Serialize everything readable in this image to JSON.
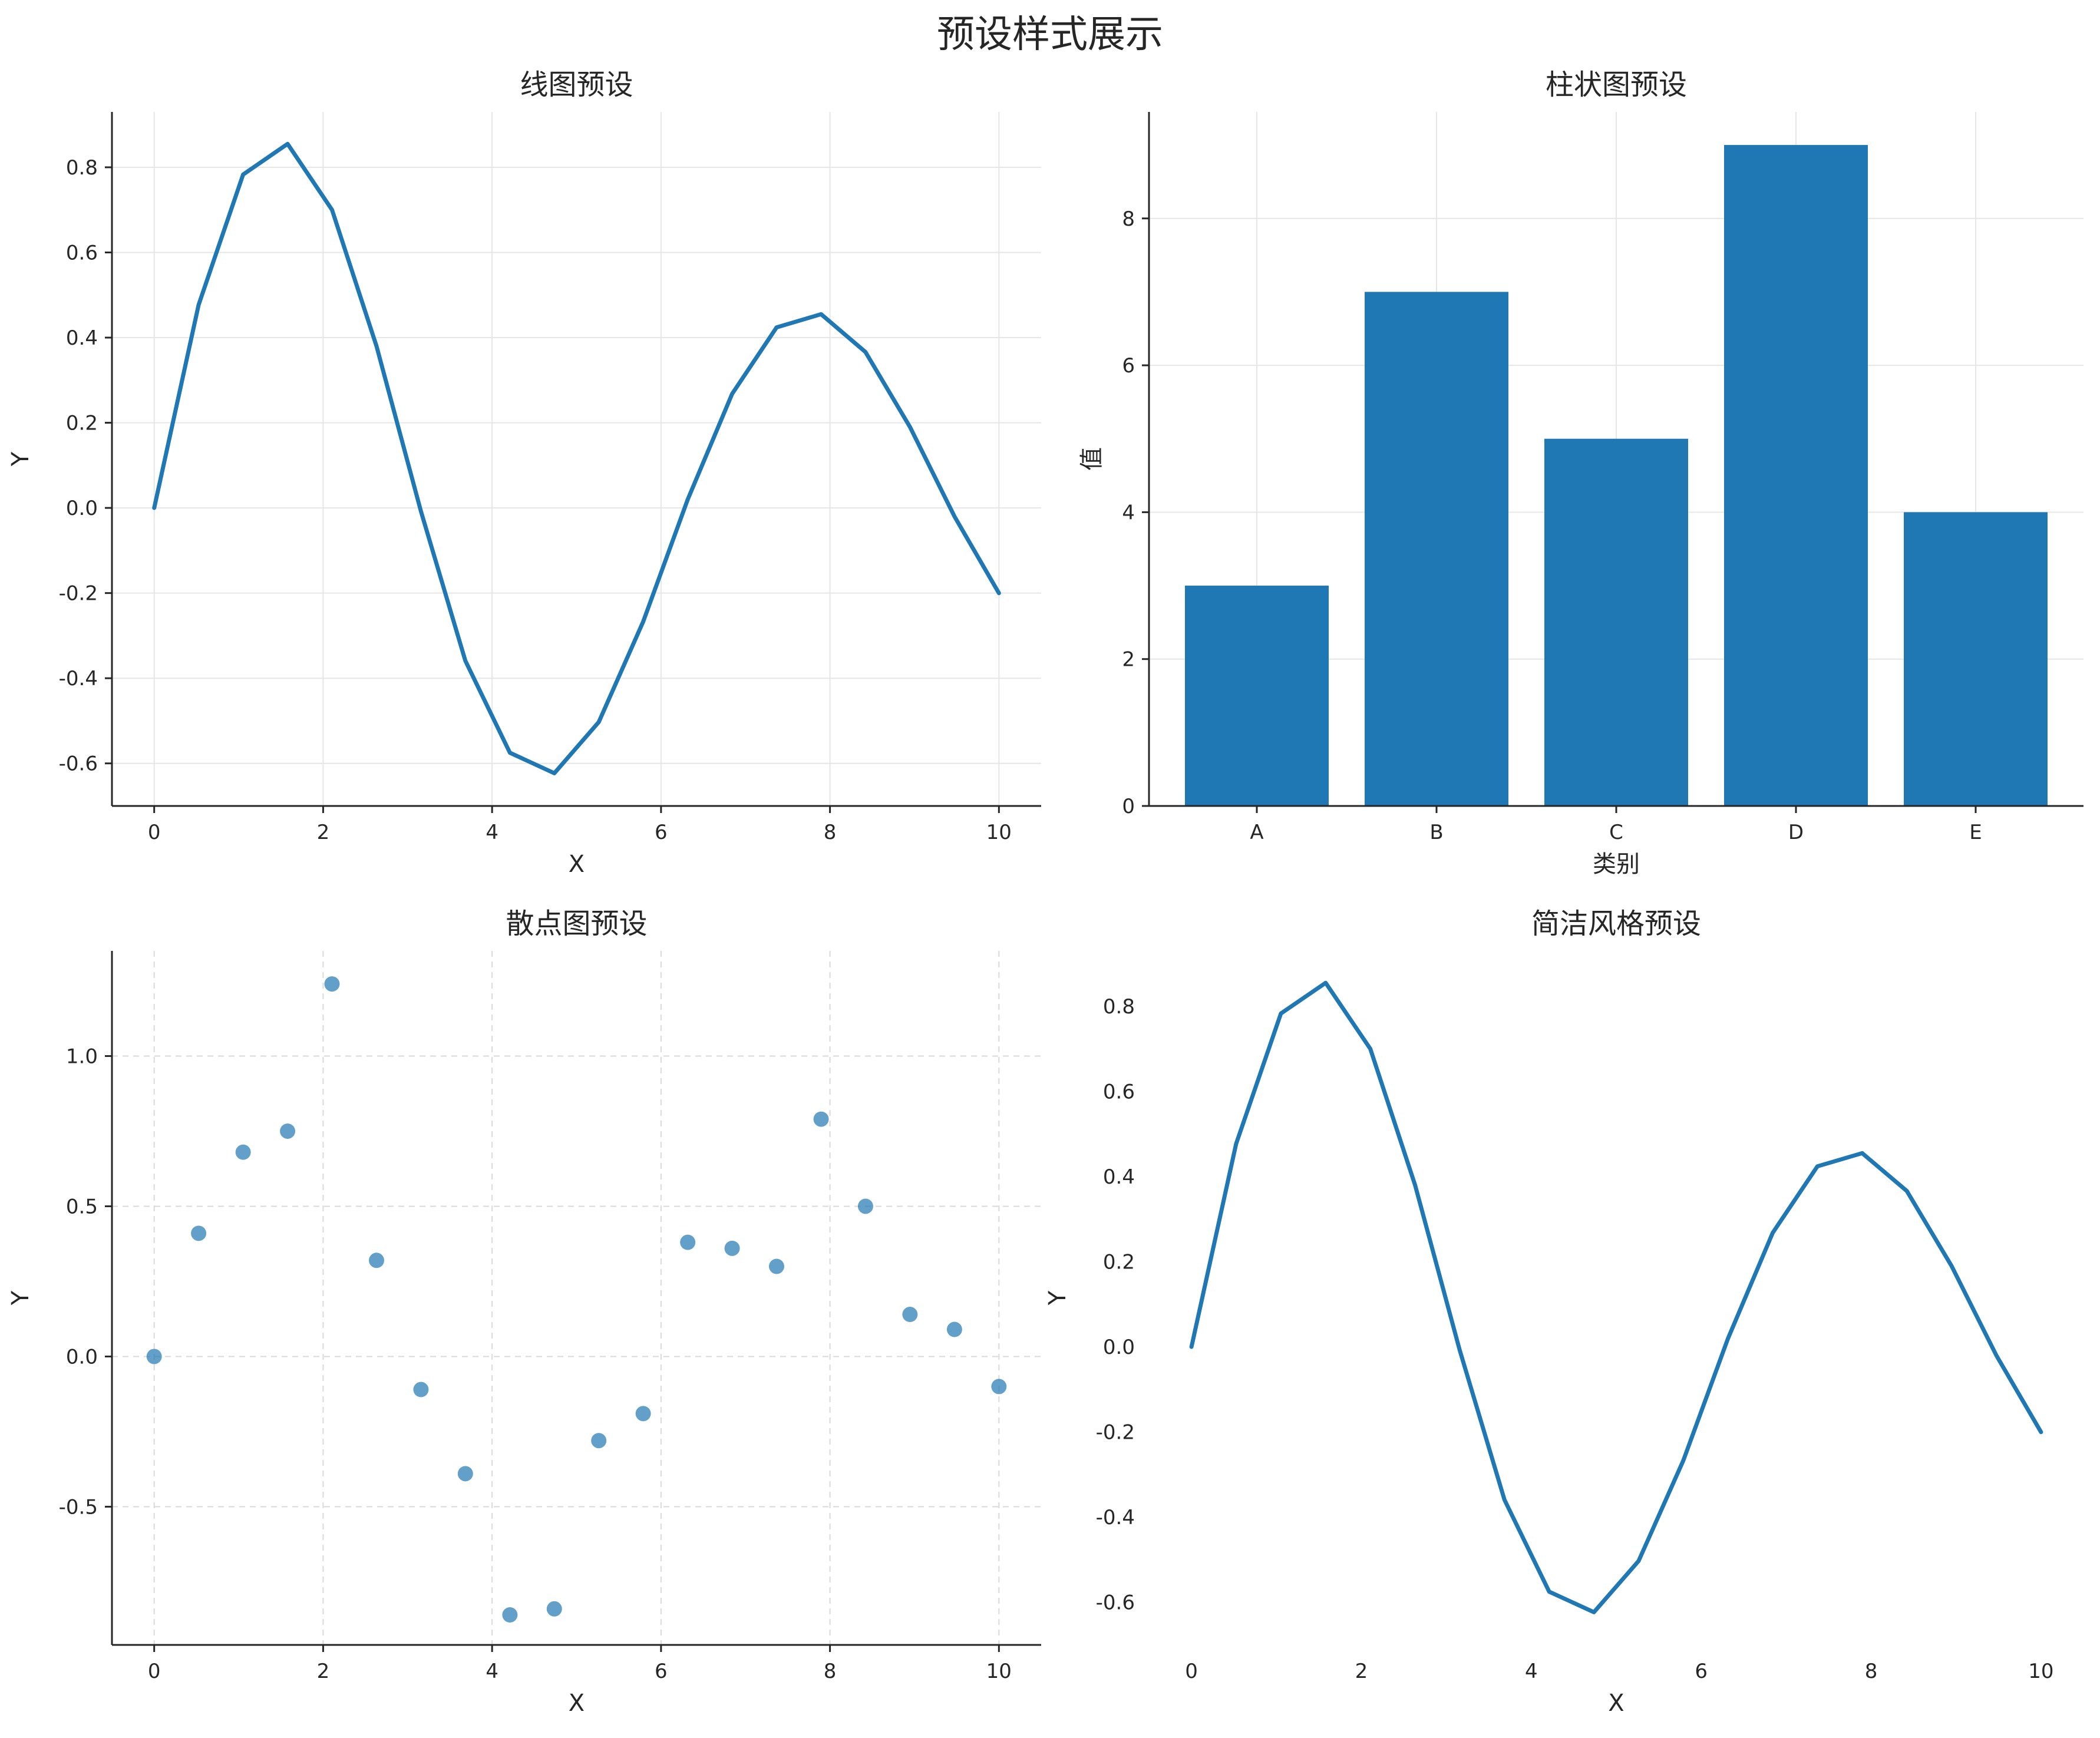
{
  "figure": {
    "title": "预设样式展示"
  },
  "chart_data": [
    {
      "type": "line",
      "title": "线图预设",
      "xlabel": "X",
      "ylabel": "Y",
      "xlim": [
        -0.5,
        10.5
      ],
      "ylim": [
        -0.7,
        0.93
      ],
      "xticks": [
        "0",
        "2",
        "4",
        "6",
        "8",
        "10"
      ],
      "yticks": [
        "-0.6",
        "-0.4",
        "-0.2",
        "0.0",
        "0.2",
        "0.4",
        "0.6",
        "0.8"
      ],
      "grid": "solid",
      "color": "#1f77b4",
      "x": [
        0,
        0.526,
        1.053,
        1.579,
        2.105,
        2.632,
        3.158,
        3.684,
        4.211,
        4.737,
        5.263,
        5.789,
        6.316,
        6.842,
        7.368,
        7.895,
        8.421,
        8.947,
        9.474,
        10
      ],
      "y": [
        0.0,
        0.477,
        0.783,
        0.855,
        0.7,
        0.38,
        -0.008,
        -0.359,
        -0.575,
        -0.623,
        -0.503,
        -0.267,
        0.02,
        0.268,
        0.424,
        0.455,
        0.366,
        0.19,
        -0.02,
        -0.2
      ]
    },
    {
      "type": "bar",
      "title": "柱状图预设",
      "xlabel": "类别",
      "ylabel": "值",
      "categories": [
        "A",
        "B",
        "C",
        "D",
        "E"
      ],
      "values": [
        3,
        7,
        5,
        9,
        4
      ],
      "ylim": [
        0,
        9.45
      ],
      "yticks": [
        "0",
        "2",
        "4",
        "6",
        "8"
      ],
      "grid": "solid",
      "color": "#1f77b4"
    },
    {
      "type": "scatter",
      "title": "散点图预设",
      "xlabel": "X",
      "ylabel": "Y",
      "xlim": [
        -0.5,
        10.5
      ],
      "ylim": [
        -0.96,
        1.35
      ],
      "xticks": [
        "0",
        "2",
        "4",
        "6",
        "8",
        "10"
      ],
      "yticks": [
        "-0.5",
        "0.0",
        "0.5",
        "1.0"
      ],
      "grid": "dashed",
      "color": "#1f77b4",
      "x": [
        0,
        0.526,
        1.053,
        1.579,
        2.105,
        2.632,
        3.158,
        3.684,
        4.211,
        4.737,
        5.263,
        5.789,
        6.316,
        6.842,
        7.368,
        7.895,
        8.421,
        8.947,
        9.474,
        10
      ],
      "y": [
        0.0,
        0.41,
        0.68,
        0.75,
        1.24,
        0.32,
        -0.11,
        -0.39,
        -0.86,
        -0.84,
        -0.28,
        -0.19,
        0.38,
        0.36,
        0.3,
        0.79,
        0.5,
        0.14,
        0.09,
        -0.1
      ]
    },
    {
      "type": "line",
      "title": "简洁风格预设",
      "xlabel": "X",
      "ylabel": "Y",
      "xlim": [
        -0.5,
        10.5
      ],
      "ylim": [
        -0.7,
        0.93
      ],
      "xticks": [
        "0",
        "2",
        "4",
        "6",
        "8",
        "10"
      ],
      "yticks": [
        "-0.6",
        "-0.4",
        "-0.2",
        "0.0",
        "0.2",
        "0.4",
        "0.6",
        "0.8"
      ],
      "grid": "off",
      "color": "#1f77b4",
      "x": [
        0,
        0.526,
        1.053,
        1.579,
        2.105,
        2.632,
        3.158,
        3.684,
        4.211,
        4.737,
        5.263,
        5.789,
        6.316,
        6.842,
        7.368,
        7.895,
        8.421,
        8.947,
        9.474,
        10
      ],
      "y": [
        0.0,
        0.477,
        0.783,
        0.855,
        0.7,
        0.38,
        -0.008,
        -0.359,
        -0.575,
        -0.623,
        -0.503,
        -0.267,
        0.02,
        0.268,
        0.424,
        0.455,
        0.366,
        0.19,
        -0.02,
        -0.2
      ]
    }
  ]
}
